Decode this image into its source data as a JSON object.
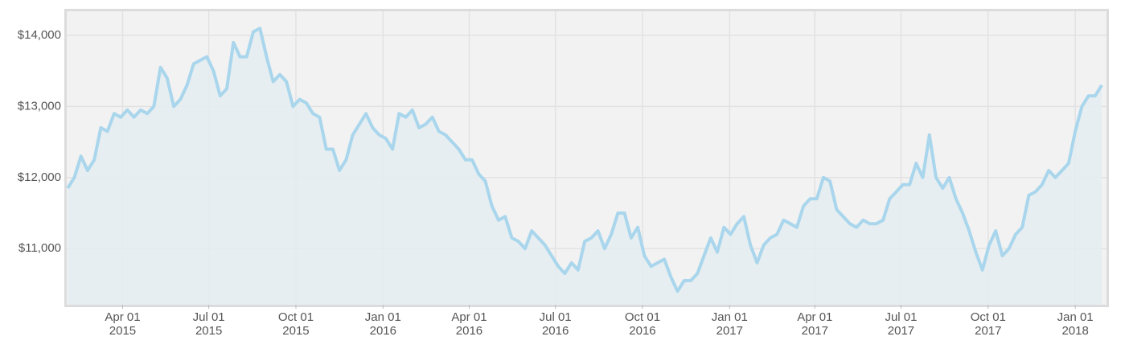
{
  "chart_data": {
    "type": "area",
    "xlim": [
      "2015-02-01",
      "2018-02-03"
    ],
    "ylim": [
      10210,
      14340
    ],
    "yticks": [
      {
        "value": 11000,
        "label": "$11,000"
      },
      {
        "value": 12000,
        "label": "$12,000"
      },
      {
        "value": 13000,
        "label": "$13,000"
      },
      {
        "value": 14000,
        "label": "$14,000"
      }
    ],
    "xticks": [
      {
        "value": "2015-04-01",
        "label": [
          "Apr 01",
          "2015"
        ]
      },
      {
        "value": "2015-07-01",
        "label": [
          "Jul 01",
          "2015"
        ]
      },
      {
        "value": "2015-10-01",
        "label": [
          "Oct 01",
          "2015"
        ]
      },
      {
        "value": "2016-01-01",
        "label": [
          "Jan 01",
          "2016"
        ]
      },
      {
        "value": "2016-04-01",
        "label": [
          "Apr 01",
          "2016"
        ]
      },
      {
        "value": "2016-07-01",
        "label": [
          "Jul 01",
          "2016"
        ]
      },
      {
        "value": "2016-10-01",
        "label": [
          "Oct 01",
          "2016"
        ]
      },
      {
        "value": "2017-01-01",
        "label": [
          "Jan 01",
          "2017"
        ]
      },
      {
        "value": "2017-04-01",
        "label": [
          "Apr 01",
          "2017"
        ]
      },
      {
        "value": "2017-07-01",
        "label": [
          "Jul 01",
          "2017"
        ]
      },
      {
        "value": "2017-10-01",
        "label": [
          "Oct 01",
          "2017"
        ]
      },
      {
        "value": "2018-01-01",
        "label": [
          "Jan 01",
          "2018"
        ]
      }
    ],
    "grid": true,
    "color": "#a9d6ec",
    "fill": "#e4edf1",
    "x": [
      "2015-02-02",
      "2015-02-09",
      "2015-02-16",
      "2015-02-23",
      "2015-03-02",
      "2015-03-09",
      "2015-03-16",
      "2015-03-23",
      "2015-03-30",
      "2015-04-06",
      "2015-04-13",
      "2015-04-20",
      "2015-04-27",
      "2015-05-04",
      "2015-05-11",
      "2015-05-18",
      "2015-05-25",
      "2015-06-01",
      "2015-06-08",
      "2015-06-15",
      "2015-06-22",
      "2015-06-29",
      "2015-07-06",
      "2015-07-13",
      "2015-07-20",
      "2015-07-27",
      "2015-08-03",
      "2015-08-10",
      "2015-08-17",
      "2015-08-24",
      "2015-08-31",
      "2015-09-07",
      "2015-09-14",
      "2015-09-21",
      "2015-09-28",
      "2015-10-05",
      "2015-10-12",
      "2015-10-19",
      "2015-10-26",
      "2015-11-02",
      "2015-11-09",
      "2015-11-16",
      "2015-11-23",
      "2015-11-30",
      "2015-12-07",
      "2015-12-14",
      "2015-12-21",
      "2015-12-28",
      "2016-01-04",
      "2016-01-11",
      "2016-01-18",
      "2016-01-25",
      "2016-02-01",
      "2016-02-08",
      "2016-02-15",
      "2016-02-22",
      "2016-02-29",
      "2016-03-07",
      "2016-03-14",
      "2016-03-21",
      "2016-03-28",
      "2016-04-04",
      "2016-04-11",
      "2016-04-18",
      "2016-04-25",
      "2016-05-02",
      "2016-05-09",
      "2016-05-16",
      "2016-05-23",
      "2016-05-30",
      "2016-06-06",
      "2016-06-13",
      "2016-06-20",
      "2016-06-27",
      "2016-07-04",
      "2016-07-11",
      "2016-07-18",
      "2016-07-25",
      "2016-08-01",
      "2016-08-08",
      "2016-08-15",
      "2016-08-22",
      "2016-08-29",
      "2016-09-05",
      "2016-09-12",
      "2016-09-19",
      "2016-09-26",
      "2016-10-03",
      "2016-10-10",
      "2016-10-17",
      "2016-10-24",
      "2016-10-31",
      "2016-11-07",
      "2016-11-14",
      "2016-11-21",
      "2016-11-28",
      "2016-12-05",
      "2016-12-12",
      "2016-12-19",
      "2016-12-26",
      "2017-01-02",
      "2017-01-09",
      "2017-01-16",
      "2017-01-23",
      "2017-01-30",
      "2017-02-06",
      "2017-02-13",
      "2017-02-20",
      "2017-02-27",
      "2017-03-06",
      "2017-03-13",
      "2017-03-20",
      "2017-03-27",
      "2017-04-03",
      "2017-04-10",
      "2017-04-17",
      "2017-04-24",
      "2017-05-01",
      "2017-05-08",
      "2017-05-15",
      "2017-05-22",
      "2017-05-29",
      "2017-06-05",
      "2017-06-12",
      "2017-06-19",
      "2017-06-26",
      "2017-07-03",
      "2017-07-10",
      "2017-07-17",
      "2017-07-24",
      "2017-07-31",
      "2017-08-07",
      "2017-08-14",
      "2017-08-21",
      "2017-08-28",
      "2017-09-04",
      "2017-09-11",
      "2017-09-18",
      "2017-09-25",
      "2017-10-02",
      "2017-10-09",
      "2017-10-16",
      "2017-10-23",
      "2017-10-30",
      "2017-11-06",
      "2017-11-13",
      "2017-11-20",
      "2017-11-27",
      "2017-12-04",
      "2017-12-11",
      "2017-12-18",
      "2017-12-25",
      "2018-01-01",
      "2018-01-08",
      "2018-01-15",
      "2018-01-22",
      "2018-01-29"
    ],
    "values": [
      11850,
      12000,
      12300,
      12100,
      12250,
      12700,
      12650,
      12900,
      12850,
      12950,
      12850,
      12950,
      12900,
      13000,
      13550,
      13400,
      13000,
      13100,
      13300,
      13600,
      13650,
      13700,
      13500,
      13150,
      13250,
      13900,
      13700,
      13700,
      14050,
      14100,
      13700,
      13350,
      13450,
      13350,
      13000,
      13100,
      13050,
      12900,
      12850,
      12400,
      12400,
      12100,
      12250,
      12600,
      12750,
      12900,
      12700,
      12600,
      12550,
      12400,
      12900,
      12850,
      12950,
      12700,
      12750,
      12850,
      12650,
      12600,
      12500,
      12400,
      12250,
      12250,
      12050,
      11950,
      11600,
      11400,
      11450,
      11150,
      11100,
      11000,
      11250,
      11150,
      11050,
      10900,
      10750,
      10650,
      10800,
      10700,
      11100,
      11150,
      11250,
      11000,
      11200,
      11500,
      11500,
      11150,
      11300,
      10900,
      10750,
      10800,
      10850,
      10600,
      10400,
      10550,
      10550,
      10650,
      10900,
      11150,
      10950,
      11300,
      11200,
      11350,
      11450,
      11050,
      10800,
      11050,
      11150,
      11200,
      11400,
      11350,
      11300,
      11600,
      11700,
      11700,
      12000,
      11950,
      11550,
      11450,
      11350,
      11300,
      11400,
      11350,
      11350,
      11400,
      11700,
      11800,
      11900,
      11900,
      12200,
      12000,
      12600,
      12000,
      11850,
      12000,
      11700,
      11500,
      11250,
      10950,
      10700,
      11050,
      11250,
      10900,
      11000,
      11200,
      11300,
      11750,
      11800,
      11900,
      12100,
      12000,
      12100,
      12200,
      12650,
      13000,
      13150,
      13150,
      13300
    ]
  }
}
